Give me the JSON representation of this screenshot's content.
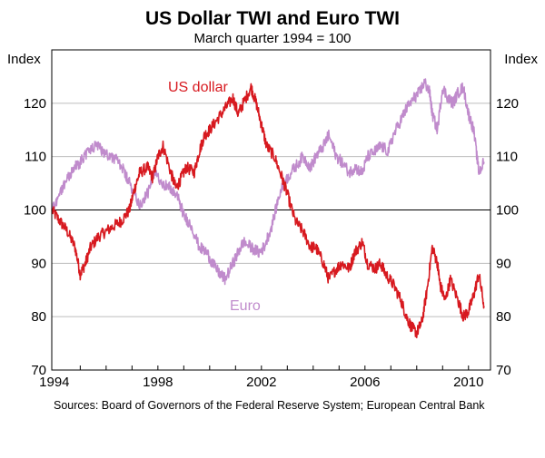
{
  "chart_data": {
    "type": "line",
    "title": "US Dollar TWI and Euro TWI",
    "subtitle": "March quarter 1994 = 100",
    "ylabel_left": "Index",
    "ylabel_right": "Index",
    "xlim": [
      1993.9,
      2010.85
    ],
    "ylim": [
      70,
      130
    ],
    "yticks": [
      70,
      80,
      90,
      100,
      110,
      120
    ],
    "xticks": [
      1994,
      1998,
      2002,
      2006,
      2010
    ],
    "xtick_labels": [
      "1994",
      "1998",
      "2002",
      "2006",
      "2010"
    ],
    "reference_line": 100,
    "grid": true,
    "series": [
      {
        "name": "US dollar",
        "color": "#d7191f",
        "label_position": "upper-center",
        "x": [
          1993.9,
          1994.2,
          1994.5,
          1994.8,
          1995.0,
          1995.2,
          1995.4,
          1995.7,
          1996.0,
          1996.3,
          1996.6,
          1996.9,
          1997.1,
          1997.3,
          1997.6,
          1997.8,
          1998.0,
          1998.2,
          1998.5,
          1998.7,
          1998.9,
          1999.1,
          1999.4,
          1999.6,
          1999.8,
          2000.0,
          2000.3,
          2000.6,
          2000.9,
          2001.1,
          2001.3,
          2001.6,
          2001.8,
          2002.0,
          2002.2,
          2002.5,
          2002.8,
          2003.0,
          2003.3,
          2003.6,
          2003.9,
          2004.1,
          2004.4,
          2004.6,
          2004.9,
          2005.1,
          2005.4,
          2005.6,
          2005.9,
          2006.1,
          2006.4,
          2006.6,
          2006.8,
          2007.1,
          2007.4,
          2007.6,
          2007.8,
          2008.0,
          2008.2,
          2008.4,
          2008.6,
          2008.8,
          2008.9,
          2009.1,
          2009.3,
          2009.6,
          2009.8,
          2010.0,
          2010.2,
          2010.4,
          2010.6
        ],
        "y": [
          100,
          98,
          96,
          93,
          88,
          90,
          93,
          95,
          96,
          97,
          98,
          100,
          104,
          107,
          108,
          106,
          110,
          112,
          107,
          104,
          106,
          108,
          107,
          111,
          114,
          115,
          117,
          119,
          121,
          118,
          120,
          123,
          120,
          116,
          112,
          110,
          106,
          103,
          98,
          96,
          93,
          93,
          90,
          87,
          89,
          90,
          89,
          92,
          94,
          90,
          89,
          90,
          88,
          86,
          83,
          80,
          78,
          77,
          79,
          85,
          93,
          90,
          86,
          83,
          87,
          83,
          80,
          81,
          84,
          88,
          82
        ]
      },
      {
        "name": "Euro",
        "color": "#c08bcc",
        "label_position": "lower-center",
        "x": [
          1993.9,
          1994.2,
          1994.5,
          1994.8,
          1995.0,
          1995.3,
          1995.6,
          1995.9,
          1996.2,
          1996.5,
          1996.8,
          1997.0,
          1997.3,
          1997.6,
          1997.9,
          1998.2,
          1998.5,
          1998.8,
          1999.0,
          1999.3,
          1999.6,
          1999.9,
          2000.1,
          2000.4,
          2000.6,
          2000.9,
          2001.1,
          2001.3,
          2001.6,
          2001.9,
          2002.1,
          2002.4,
          2002.7,
          2003.0,
          2003.3,
          2003.6,
          2003.9,
          2004.1,
          2004.4,
          2004.6,
          2004.9,
          2005.1,
          2005.4,
          2005.6,
          2005.9,
          2006.1,
          2006.4,
          2006.6,
          2006.9,
          2007.1,
          2007.4,
          2007.6,
          2007.9,
          2008.1,
          2008.3,
          2008.5,
          2008.6,
          2008.8,
          2009.0,
          2009.2,
          2009.4,
          2009.6,
          2009.8,
          2010.0,
          2010.2,
          2010.4,
          2010.6
        ],
        "y": [
          100,
          103,
          106,
          108,
          109,
          111,
          112,
          111,
          110,
          109,
          106,
          104,
          101,
          103,
          107,
          105,
          104,
          102,
          99,
          97,
          93,
          92,
          90,
          88,
          87,
          90,
          92,
          94,
          93,
          92,
          93,
          97,
          103,
          106,
          108,
          110,
          108,
          110,
          112,
          114,
          110,
          109,
          107,
          108,
          107,
          110,
          111,
          112,
          111,
          114,
          117,
          119,
          121,
          122,
          124,
          122,
          118,
          115,
          123,
          121,
          120,
          122,
          123,
          118,
          115,
          107,
          109
        ]
      }
    ],
    "source": "Sources: Board of Governors of the Federal Reserve System; European Central Bank"
  }
}
